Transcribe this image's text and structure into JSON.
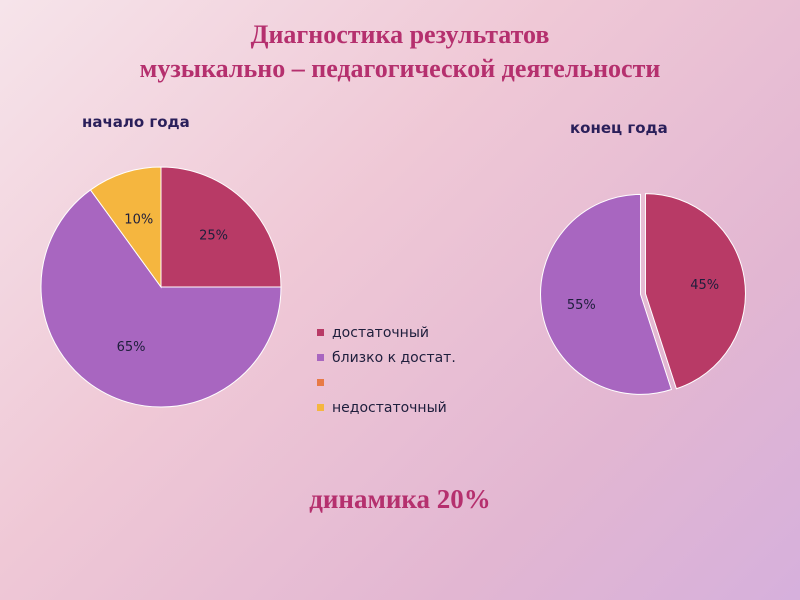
{
  "header": {
    "title_line1": "Диагностика результатов",
    "title_line2": "музыкально – педагогической деятельности"
  },
  "chart_data": [
    {
      "type": "pie",
      "title": "начало года",
      "categories": [
        "достаточный",
        "близко к достат.",
        "",
        "недостаточный"
      ],
      "values": [
        25,
        65,
        0,
        10
      ],
      "labels": [
        "25%",
        "65%",
        "",
        "10%"
      ],
      "colors": [
        "#b83a66",
        "#a866c0",
        "#e87a46",
        "#f5b63f"
      ]
    },
    {
      "type": "pie",
      "title": "конец года",
      "categories": [
        "достаточный",
        "близко к достат."
      ],
      "values": [
        45,
        55
      ],
      "labels": [
        "45%",
        "55%"
      ],
      "colors": [
        "#b83a66",
        "#a866c0"
      ],
      "exploded": true
    }
  ],
  "legend": {
    "placement": "center",
    "items": [
      {
        "label": "достаточный",
        "color": "#b83a66"
      },
      {
        "label": "близко к достат.",
        "color": "#a866c0"
      },
      {
        "label": "",
        "color": "#e87a46"
      },
      {
        "label": "недостаточный",
        "color": "#f5b63f"
      }
    ]
  },
  "footer": {
    "dynamics": "динамика 20%"
  }
}
